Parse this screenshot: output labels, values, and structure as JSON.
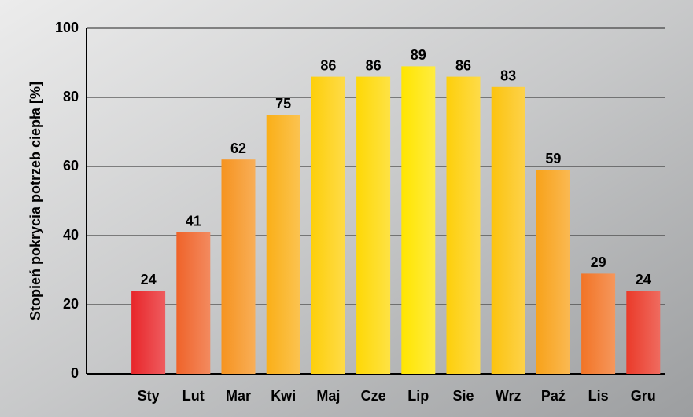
{
  "chart_data": {
    "type": "bar",
    "y_label": "Stopień pokrycia potrzeb ciepła [%]",
    "categories": [
      "Sty",
      "Lut",
      "Mar",
      "Kwi",
      "Maj",
      "Cze",
      "Lip",
      "Sie",
      "Wrz",
      "Paź",
      "Lis",
      "Gru"
    ],
    "values": [
      24,
      41,
      62,
      75,
      86,
      86,
      89,
      86,
      83,
      59,
      29,
      24
    ],
    "colors": [
      "#e8262a",
      "#ef6329",
      "#f6931f",
      "#faaf17",
      "#fdcf0b",
      "#fed806",
      "#ffe500",
      "#fdcf0b",
      "#fcc30e",
      "#f8a21a",
      "#f27426",
      "#ea3a29"
    ],
    "ylim": [
      0,
      100
    ],
    "yticks": [
      0,
      20,
      40,
      60,
      80,
      100
    ],
    "grid": true
  }
}
